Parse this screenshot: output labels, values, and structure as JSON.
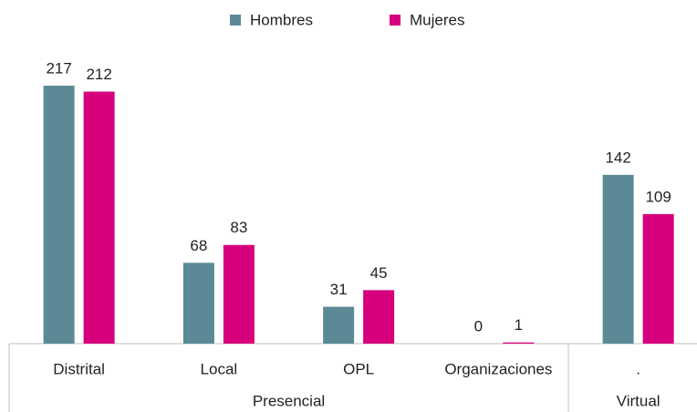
{
  "chart_data": {
    "type": "bar",
    "category_groups": [
      {
        "name": "Presencial",
        "categories": [
          "Distrital",
          "Local",
          "OPL",
          "Organizaciones"
        ]
      },
      {
        "name": "Virtual",
        "categories": [
          "."
        ]
      }
    ],
    "series": [
      {
        "name": "Hombres",
        "color": "#5b8a96",
        "values": [
          217,
          68,
          31,
          0,
          142
        ]
      },
      {
        "name": "Mujeres",
        "color": "#d6007c",
        "values": [
          212,
          83,
          45,
          1,
          109
        ]
      }
    ],
    "legend": "top"
  }
}
